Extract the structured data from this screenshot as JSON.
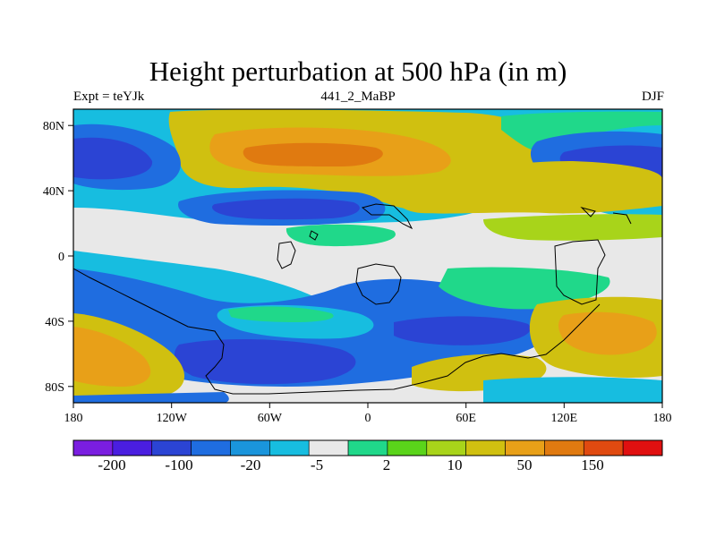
{
  "title": "Height perturbation at 500 hPa (in m)",
  "subtitle_left": "Expt = teYJk",
  "subtitle_center": "441_2_MaBP",
  "subtitle_right": "DJF",
  "map": {
    "projection": "cylindrical equidistant",
    "lon_range": [
      -180,
      180
    ],
    "lat_range": [
      -90,
      90
    ],
    "x_ticks": [
      "180",
      "120W",
      "60W",
      "0",
      "60E",
      "120E",
      "180"
    ],
    "y_ticks": [
      "80N",
      "40N",
      "0",
      "40S",
      "80S"
    ],
    "colors": {
      "light_gray": "#e8e8e8",
      "dark_blue": "#2b44d4",
      "medium_blue": "#1f6de0",
      "light_blue": "#1a95dc",
      "cyan": "#17bde0",
      "green": "#20d88a",
      "yellow_green": "#a8d41a",
      "olive_yellow": "#d0c010",
      "orange": "#e8a018",
      "dark_orange": "#e07a10"
    }
  },
  "colorbar": {
    "labels": [
      "-200",
      "-100",
      "-20",
      "-5",
      "2",
      "10",
      "50",
      "150"
    ],
    "colors": [
      "#7a1ee0",
      "#4a1ee0",
      "#2b44d4",
      "#1f6de0",
      "#1a95dc",
      "#17bde0",
      "#e8e8e8",
      "#20d88a",
      "#5ad41a",
      "#a8d41a",
      "#d0c010",
      "#e8a018",
      "#e07a10",
      "#e04a10",
      "#e01010"
    ]
  }
}
